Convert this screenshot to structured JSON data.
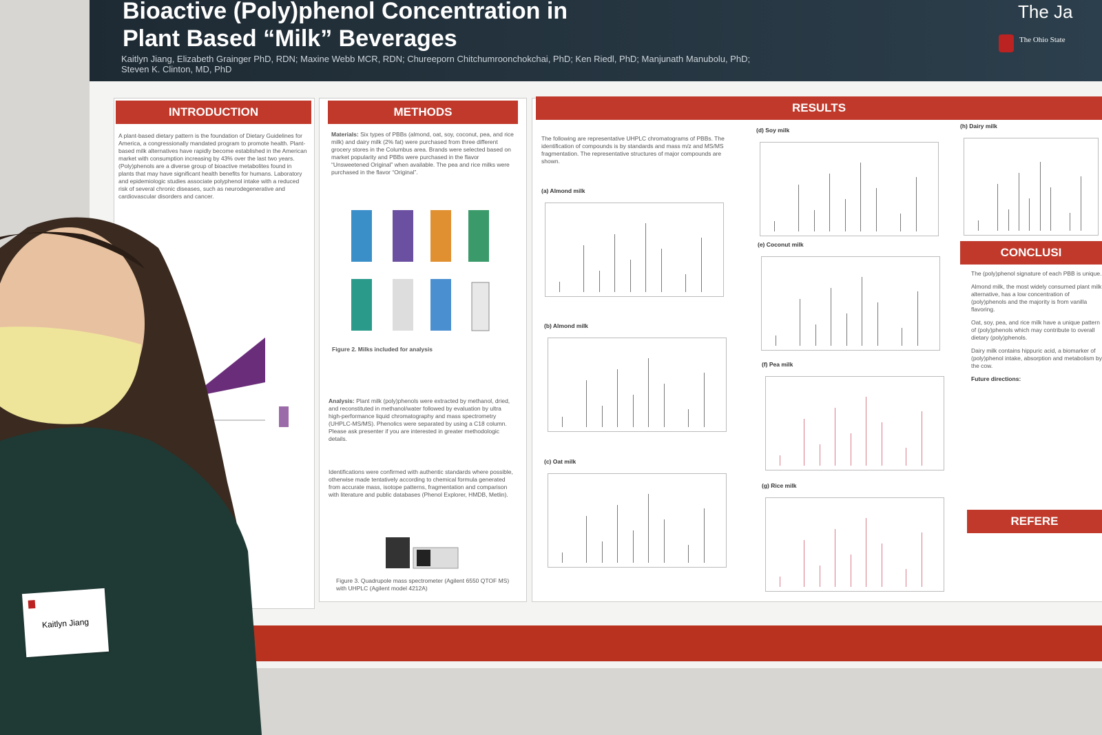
{
  "header": {
    "title_line1": "Bioactive (Poly)phenol Concentration in",
    "title_line2": "Plant Based “Milk” Beverages",
    "authors_line1": "Kaitlyn Jiang, Elizabeth Grainger PhD, RDN; Maxine Webb MCR, RDN; Chureeporn Chitchumroonchokchai, PhD; Ken Riedl, PhD; Manjunath Manubolu, PhD;",
    "authors_line2": "Steven K. Clinton, MD, PhD",
    "corner_text": "The Ja",
    "logo_text": "The Ohio State"
  },
  "introduction": {
    "heading": "INTRODUCTION",
    "text": "A plant-based dietary pattern is the foundation of Dietary Guidelines for America, a congressionally mandated program to promote health. Plant-based milk alternatives have rapidly become established in the American market with consumption increasing by 43% over the last two years. (Poly)phenols are a diverse group of bioactive metabolites found in plants that may have significant health benefits for humans. Laboratory and epidemiologic studies associate polyphenol intake with a reduced risk of several chronic diseases, such as neurodegenerative and cardiovascular disorders and cancer."
  },
  "methods": {
    "heading": "METHODS",
    "materials_label": "Materials:",
    "materials_text": "Six types of PBBs (almond, oat, soy, coconut, pea, and rice milk) and dairy milk (2% fat) were purchased from three different grocery stores in the Columbus area. Brands were selected based on market popularity and PBBs were purchased in the flavor “Unsweetened Original” when available. The pea and rice milks were purchased in the flavor “Original”.",
    "figure2_caption": "Figure 2. Milks included for analysis",
    "analysis_label": "Analysis:",
    "analysis_text": "Plant milk (poly)phenols were extracted by methanol, dried, and reconstituted in methanol/water followed by evaluation by ultra high-performance liquid chromatography and mass spectrometry (UHPLC-MS/MS). Phenolics were separated by using a C18 column. Please ask presenter if you are interested in greater methodologic details.",
    "identification_text": "Identifications were confirmed with authentic standards where possible, otherwise made tentatively according to chemical formula generated from accurate mass, isotope patterns, fragmentation and comparison with literature and public databases (Phenol Explorer, HMDB, Metlin).",
    "figure3_caption": "Figure 3. Quadrupole mass spectrometer (Agilent 6550 QTOF MS) with UHPLC (Agilent model 4212A)"
  },
  "results": {
    "heading": "RESULTS",
    "intro": "The following are representative UHPLC chromatograms of PBBs. The identification of compounds is by standards and mass m/z and MS/MS fragmentation. The representative structures of major compounds are shown.",
    "panels": [
      "(a) Almond milk",
      "(b) Almond milk",
      "(c) Oat milk",
      "(d) Soy milk",
      "(e) Coconut milk",
      "(f) Pea milk",
      "(g) Rice milk",
      "(h) Dairy milk"
    ]
  },
  "conclusions": {
    "heading": "CONCLUSI",
    "items": [
      "The (poly)phenol signature of each PBB is unique.",
      "Almond milk, the most widely consumed plant milk alternative, has a low concentration of (poly)phenols and the majority is from vanilla flavoring.",
      "Oat, soy, pea, and rice milk have a unique pattern of (poly)phenols which may contribute to overall dietary (poly)phenols.",
      "Dairy milk contains hippuric acid, a biomarker of (poly)phenol intake, absorption and metabolism by the cow."
    ],
    "future_label": "Future directions:"
  },
  "references": {
    "heading": "REFERE"
  },
  "name_tag": {
    "name": "Kaitlyn Jiang"
  }
}
